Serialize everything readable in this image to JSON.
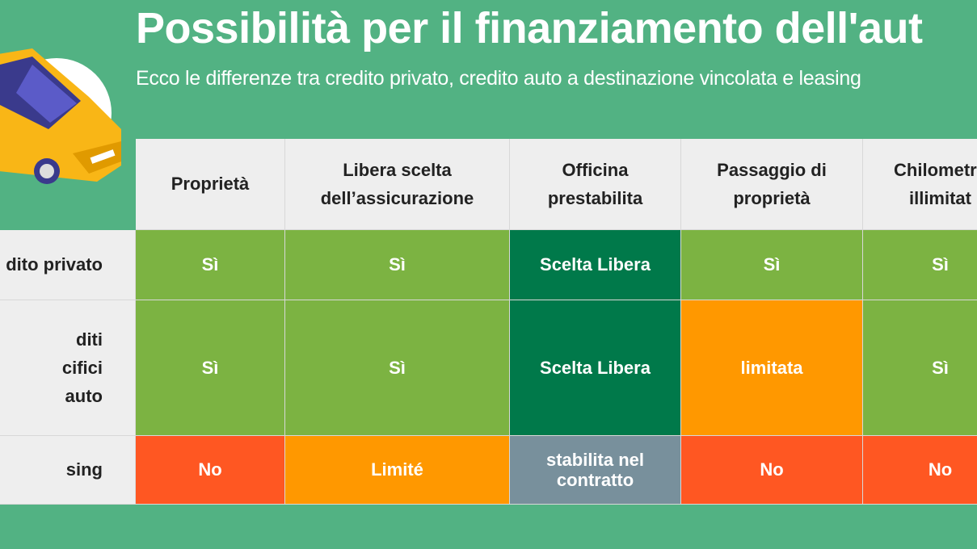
{
  "header": {
    "title": "Possibilità per il finanziamento dell'aut",
    "subtitle": "Ecco le differenze tra credito privato, credito auto a destinazione vincolata e leasing"
  },
  "table": {
    "columns": [
      [
        "Proprietà"
      ],
      [
        "Libera scelta",
        "dell’assicurazione"
      ],
      [
        "Officina",
        "prestabilita"
      ],
      [
        "Passaggio di",
        "proprietà"
      ],
      [
        "Chilometra",
        "illimitat"
      ]
    ],
    "rows": [
      {
        "label": [
          "dito privato"
        ],
        "cells": [
          {
            "text": [
              "Sì"
            ],
            "color": "#7cb342"
          },
          {
            "text": [
              "Sì"
            ],
            "color": "#7cb342"
          },
          {
            "text": [
              "Scelta Libera"
            ],
            "color": "#00794a"
          },
          {
            "text": [
              "Sì"
            ],
            "color": "#7cb342"
          },
          {
            "text": [
              "Sì"
            ],
            "color": "#7cb342"
          }
        ]
      },
      {
        "label": [
          "diti",
          "cifici",
          "auto"
        ],
        "cells": [
          {
            "text": [
              "Sì"
            ],
            "color": "#7cb342"
          },
          {
            "text": [
              "Sì"
            ],
            "color": "#7cb342"
          },
          {
            "text": [
              "Scelta Libera"
            ],
            "color": "#00794a"
          },
          {
            "text": [
              "limitata"
            ],
            "color": "#ff9800"
          },
          {
            "text": [
              "Sì"
            ],
            "color": "#7cb342"
          }
        ]
      },
      {
        "label": [
          "sing"
        ],
        "cells": [
          {
            "text": [
              "No"
            ],
            "color": "#ff5722"
          },
          {
            "text": [
              "Limité"
            ],
            "color": "#ff9800"
          },
          {
            "text": [
              "stabilita nel",
              "contratto"
            ],
            "color": "#78909c"
          },
          {
            "text": [
              "No"
            ],
            "color": "#ff5722"
          },
          {
            "text": [
              "No"
            ],
            "color": "#ff5722"
          }
        ]
      }
    ]
  }
}
